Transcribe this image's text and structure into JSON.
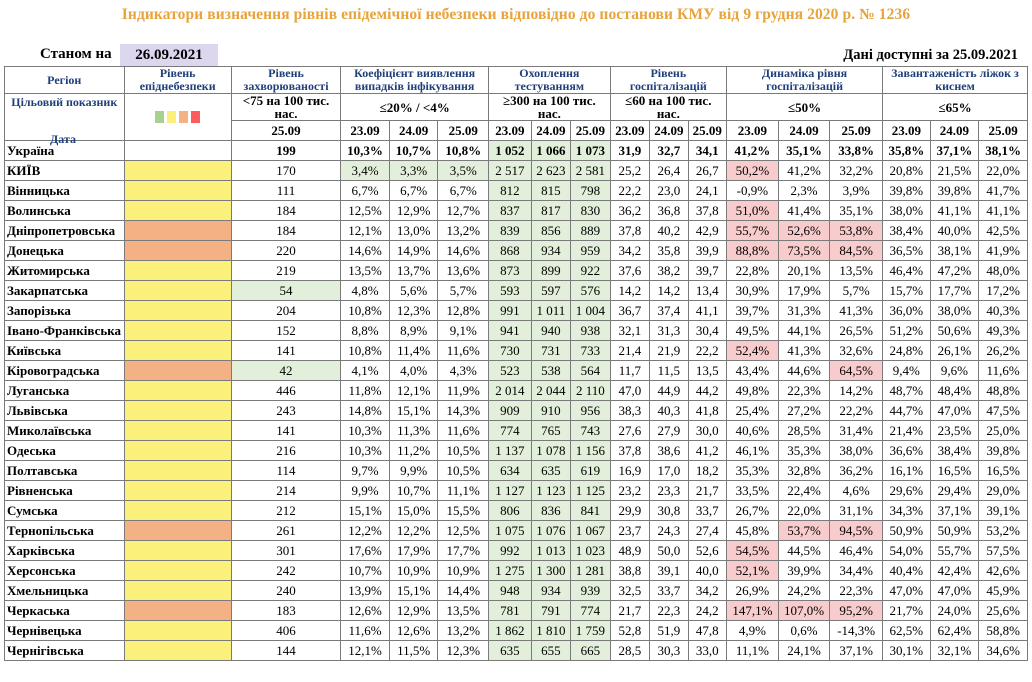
{
  "title": "Індикатори визначення рівнів епідемічної небезпеки відповідно до постанови КМУ від 9 грудня 2020 р. № 1236",
  "as_of_label": "Станом на",
  "as_of_date": "26.09.2021",
  "data_available": "Дані доступні за 25.09.2021",
  "headers": {
    "region": "Регіон",
    "danger_level": "Рівень епіднебезпеки",
    "morbidity": "Рівень захворюваності",
    "detection": "Коефіцієнт виявлення випадків інфікування",
    "testing": "Охоплення тестуванням",
    "hosp_level": "Рівень госпіталізацій",
    "hosp_dynamics": "Динаміка рівня госпіталізацій",
    "bed_load": "Завантаженість ліжок з киснем"
  },
  "target": {
    "label": "Цільовий показник",
    "morbidity": "<75 на 100 тис. нас.",
    "detection": "≤20% / <4%",
    "testing": "≥300 на 100 тис. нас.",
    "hosp_level": "≤60 на 100 тис. нас.",
    "hosp_dynamics": "≤50%",
    "bed_load": "≤65%"
  },
  "legend_colors": [
    "#a9d08e",
    "#fbf07a",
    "#f4b183",
    "#ff5b5b"
  ],
  "date_row": {
    "label": "Дата",
    "morbidity": "25.09",
    "dates": [
      "23.09",
      "24.09",
      "25.09"
    ]
  },
  "level_colors": {
    "yellow": "#fbf07a",
    "green": "#e2efda",
    "orange": "#f4b183"
  },
  "rows": [
    {
      "region": "Україна",
      "level": "none",
      "morbidity": "199",
      "detection": [
        "10,3%",
        "10,7%",
        "10,8%"
      ],
      "testing": [
        "1 052",
        "1 066",
        "1 073"
      ],
      "hosp": [
        "31,9",
        "32,7",
        "34,1"
      ],
      "dyn": [
        "41,2%",
        "35,1%",
        "33,8%"
      ],
      "beds": [
        "35,8%",
        "37,1%",
        "38,1%"
      ],
      "hl": {
        "tst": [
          1,
          1,
          1
        ]
      }
    },
    {
      "region": "КИЇВ",
      "level": "yellow",
      "morbidity": "170",
      "detection": [
        "3,4%",
        "3,3%",
        "3,5%"
      ],
      "testing": [
        "2 517",
        "2 623",
        "2 581"
      ],
      "hosp": [
        "25,2",
        "26,4",
        "26,7"
      ],
      "dyn": [
        "50,2%",
        "41,2%",
        "32,2%"
      ],
      "beds": [
        "20,8%",
        "21,5%",
        "22,0%"
      ],
      "hl": {
        "det": [
          1,
          1,
          1
        ],
        "tst": [
          1,
          1,
          1
        ],
        "dyn": [
          1,
          0,
          0
        ]
      }
    },
    {
      "region": "Вінницька",
      "level": "yellow",
      "morbidity": "111",
      "detection": [
        "6,7%",
        "6,7%",
        "6,7%"
      ],
      "testing": [
        "812",
        "815",
        "798"
      ],
      "hosp": [
        "22,2",
        "23,0",
        "24,1"
      ],
      "dyn": [
        "-0,9%",
        "2,3%",
        "3,9%"
      ],
      "beds": [
        "39,8%",
        "39,8%",
        "41,7%"
      ],
      "hl": {
        "tst": [
          1,
          1,
          1
        ]
      }
    },
    {
      "region": "Волинська",
      "level": "yellow",
      "morbidity": "184",
      "detection": [
        "12,5%",
        "12,9%",
        "12,7%"
      ],
      "testing": [
        "837",
        "817",
        "830"
      ],
      "hosp": [
        "36,2",
        "36,8",
        "37,8"
      ],
      "dyn": [
        "51,0%",
        "41,4%",
        "35,1%"
      ],
      "beds": [
        "38,0%",
        "41,1%",
        "41,1%"
      ],
      "hl": {
        "tst": [
          1,
          1,
          1
        ],
        "dyn": [
          1,
          0,
          0
        ]
      }
    },
    {
      "region": "Дніпропетровська",
      "level": "orange",
      "morbidity": "184",
      "detection": [
        "12,1%",
        "13,0%",
        "13,2%"
      ],
      "testing": [
        "839",
        "856",
        "889"
      ],
      "hosp": [
        "37,8",
        "40,2",
        "42,9"
      ],
      "dyn": [
        "55,7%",
        "52,6%",
        "53,8%"
      ],
      "beds": [
        "38,4%",
        "40,0%",
        "42,5%"
      ],
      "hl": {
        "tst": [
          1,
          1,
          1
        ],
        "dyn": [
          1,
          1,
          1
        ]
      }
    },
    {
      "region": "Донецька",
      "level": "orange",
      "morbidity": "220",
      "detection": [
        "14,6%",
        "14,9%",
        "14,6%"
      ],
      "testing": [
        "868",
        "934",
        "959"
      ],
      "hosp": [
        "34,2",
        "35,8",
        "39,9"
      ],
      "dyn": [
        "88,8%",
        "73,5%",
        "84,5%"
      ],
      "beds": [
        "36,5%",
        "38,1%",
        "41,9%"
      ],
      "hl": {
        "tst": [
          1,
          1,
          1
        ],
        "dyn": [
          1,
          1,
          1
        ]
      }
    },
    {
      "region": "Житомирська",
      "level": "yellow",
      "morbidity": "219",
      "detection": [
        "13,5%",
        "13,7%",
        "13,6%"
      ],
      "testing": [
        "873",
        "899",
        "922"
      ],
      "hosp": [
        "37,6",
        "38,2",
        "39,7"
      ],
      "dyn": [
        "22,8%",
        "20,1%",
        "13,5%"
      ],
      "beds": [
        "46,4%",
        "47,2%",
        "48,0%"
      ],
      "hl": {
        "tst": [
          1,
          1,
          1
        ]
      }
    },
    {
      "region": "Закарпатська",
      "level": "yellow",
      "morbidity": "54",
      "detection": [
        "4,8%",
        "5,6%",
        "5,7%"
      ],
      "testing": [
        "593",
        "597",
        "576"
      ],
      "hosp": [
        "14,2",
        "14,2",
        "13,4"
      ],
      "dyn": [
        "30,9%",
        "17,9%",
        "5,7%"
      ],
      "beds": [
        "15,7%",
        "17,7%",
        "17,2%"
      ],
      "hl": {
        "mor": 1,
        "tst": [
          1,
          1,
          1
        ]
      }
    },
    {
      "region": "Запорізька",
      "level": "yellow",
      "morbidity": "204",
      "detection": [
        "10,8%",
        "12,3%",
        "12,8%"
      ],
      "testing": [
        "991",
        "1 011",
        "1 004"
      ],
      "hosp": [
        "36,7",
        "37,4",
        "41,1"
      ],
      "dyn": [
        "39,7%",
        "31,3%",
        "41,3%"
      ],
      "beds": [
        "36,0%",
        "38,0%",
        "40,3%"
      ],
      "hl": {
        "tst": [
          1,
          1,
          1
        ]
      }
    },
    {
      "region": "Івано-Франківська",
      "level": "yellow",
      "morbidity": "152",
      "detection": [
        "8,8%",
        "8,9%",
        "9,1%"
      ],
      "testing": [
        "941",
        "940",
        "938"
      ],
      "hosp": [
        "32,1",
        "31,3",
        "30,4"
      ],
      "dyn": [
        "49,5%",
        "44,1%",
        "26,5%"
      ],
      "beds": [
        "51,2%",
        "50,6%",
        "49,3%"
      ],
      "hl": {
        "tst": [
          1,
          1,
          1
        ]
      }
    },
    {
      "region": "Київська",
      "level": "yellow",
      "morbidity": "141",
      "detection": [
        "10,8%",
        "11,4%",
        "11,6%"
      ],
      "testing": [
        "730",
        "731",
        "733"
      ],
      "hosp": [
        "21,4",
        "21,9",
        "22,2"
      ],
      "dyn": [
        "52,4%",
        "41,3%",
        "32,6%"
      ],
      "beds": [
        "24,8%",
        "26,1%",
        "26,2%"
      ],
      "hl": {
        "tst": [
          1,
          1,
          1
        ],
        "dyn": [
          1,
          0,
          0
        ]
      }
    },
    {
      "region": "Кіровоградська",
      "level": "orange",
      "morbidity": "42",
      "detection": [
        "4,1%",
        "4,0%",
        "4,3%"
      ],
      "testing": [
        "523",
        "538",
        "564"
      ],
      "hosp": [
        "11,7",
        "11,5",
        "13,5"
      ],
      "dyn": [
        "43,4%",
        "44,6%",
        "64,5%"
      ],
      "beds": [
        "9,4%",
        "9,6%",
        "11,6%"
      ],
      "hl": {
        "mor": 1,
        "tst": [
          1,
          1,
          1
        ],
        "dyn": [
          0,
          0,
          1
        ]
      }
    },
    {
      "region": "Луганська",
      "level": "yellow",
      "morbidity": "446",
      "detection": [
        "11,8%",
        "12,1%",
        "11,9%"
      ],
      "testing": [
        "2 014",
        "2 044",
        "2 110"
      ],
      "hosp": [
        "47,0",
        "44,9",
        "44,2"
      ],
      "dyn": [
        "49,8%",
        "22,3%",
        "14,2%"
      ],
      "beds": [
        "48,7%",
        "48,4%",
        "48,8%"
      ],
      "hl": {
        "tst": [
          1,
          1,
          1
        ]
      }
    },
    {
      "region": "Львівська",
      "level": "yellow",
      "morbidity": "243",
      "detection": [
        "14,8%",
        "15,1%",
        "14,3%"
      ],
      "testing": [
        "909",
        "910",
        "956"
      ],
      "hosp": [
        "38,3",
        "40,3",
        "41,8"
      ],
      "dyn": [
        "25,4%",
        "27,2%",
        "22,2%"
      ],
      "beds": [
        "44,7%",
        "47,0%",
        "47,5%"
      ],
      "hl": {
        "tst": [
          1,
          1,
          1
        ]
      }
    },
    {
      "region": "Миколаївська",
      "level": "yellow",
      "morbidity": "141",
      "detection": [
        "10,3%",
        "11,3%",
        "11,6%"
      ],
      "testing": [
        "774",
        "765",
        "743"
      ],
      "hosp": [
        "27,6",
        "27,9",
        "30,0"
      ],
      "dyn": [
        "40,6%",
        "28,5%",
        "31,4%"
      ],
      "beds": [
        "21,4%",
        "23,5%",
        "25,0%"
      ],
      "hl": {
        "tst": [
          1,
          1,
          1
        ]
      }
    },
    {
      "region": "Одеська",
      "level": "yellow",
      "morbidity": "216",
      "detection": [
        "10,3%",
        "11,2%",
        "10,5%"
      ],
      "testing": [
        "1 137",
        "1 078",
        "1 156"
      ],
      "hosp": [
        "37,8",
        "38,6",
        "41,2"
      ],
      "dyn": [
        "46,1%",
        "35,3%",
        "38,0%"
      ],
      "beds": [
        "36,6%",
        "38,4%",
        "39,8%"
      ],
      "hl": {
        "tst": [
          1,
          1,
          1
        ]
      }
    },
    {
      "region": "Полтавська",
      "level": "yellow",
      "morbidity": "114",
      "detection": [
        "9,7%",
        "9,9%",
        "10,5%"
      ],
      "testing": [
        "634",
        "635",
        "619"
      ],
      "hosp": [
        "16,9",
        "17,0",
        "18,2"
      ],
      "dyn": [
        "35,3%",
        "32,8%",
        "36,2%"
      ],
      "beds": [
        "16,1%",
        "16,5%",
        "16,5%"
      ],
      "hl": {
        "tst": [
          1,
          1,
          1
        ]
      }
    },
    {
      "region": "Рівненська",
      "level": "yellow",
      "morbidity": "214",
      "detection": [
        "9,9%",
        "10,7%",
        "11,1%"
      ],
      "testing": [
        "1 127",
        "1 123",
        "1 125"
      ],
      "hosp": [
        "23,2",
        "23,3",
        "21,7"
      ],
      "dyn": [
        "33,5%",
        "22,4%",
        "4,6%"
      ],
      "beds": [
        "29,6%",
        "29,4%",
        "29,0%"
      ],
      "hl": {
        "tst": [
          1,
          1,
          1
        ]
      }
    },
    {
      "region": "Сумська",
      "level": "yellow",
      "morbidity": "212",
      "detection": [
        "15,1%",
        "15,0%",
        "15,5%"
      ],
      "testing": [
        "806",
        "836",
        "841"
      ],
      "hosp": [
        "29,9",
        "30,8",
        "33,7"
      ],
      "dyn": [
        "26,7%",
        "22,0%",
        "31,1%"
      ],
      "beds": [
        "34,3%",
        "37,1%",
        "39,1%"
      ],
      "hl": {
        "tst": [
          1,
          1,
          1
        ]
      }
    },
    {
      "region": "Тернопільська",
      "level": "orange",
      "morbidity": "261",
      "detection": [
        "12,2%",
        "12,2%",
        "12,5%"
      ],
      "testing": [
        "1 075",
        "1 076",
        "1 067"
      ],
      "hosp": [
        "23,7",
        "24,3",
        "27,4"
      ],
      "dyn": [
        "45,8%",
        "53,7%",
        "94,5%"
      ],
      "beds": [
        "50,9%",
        "50,9%",
        "53,2%"
      ],
      "hl": {
        "tst": [
          1,
          1,
          1
        ],
        "dyn": [
          0,
          1,
          1
        ]
      }
    },
    {
      "region": "Харківська",
      "level": "yellow",
      "morbidity": "301",
      "detection": [
        "17,6%",
        "17,9%",
        "17,7%"
      ],
      "testing": [
        "992",
        "1 013",
        "1 023"
      ],
      "hosp": [
        "48,9",
        "50,0",
        "52,6"
      ],
      "dyn": [
        "54,5%",
        "44,5%",
        "46,4%"
      ],
      "beds": [
        "54,0%",
        "55,7%",
        "57,5%"
      ],
      "hl": {
        "tst": [
          1,
          1,
          1
        ],
        "dyn": [
          1,
          0,
          0
        ]
      }
    },
    {
      "region": "Херсонська",
      "level": "yellow",
      "morbidity": "242",
      "detection": [
        "10,7%",
        "10,9%",
        "10,9%"
      ],
      "testing": [
        "1 275",
        "1 300",
        "1 281"
      ],
      "hosp": [
        "38,8",
        "39,1",
        "40,0"
      ],
      "dyn": [
        "52,1%",
        "39,9%",
        "34,4%"
      ],
      "beds": [
        "40,4%",
        "42,4%",
        "42,6%"
      ],
      "hl": {
        "tst": [
          1,
          1,
          1
        ],
        "dyn": [
          1,
          0,
          0
        ]
      }
    },
    {
      "region": "Хмельницька",
      "level": "yellow",
      "morbidity": "240",
      "detection": [
        "13,9%",
        "15,1%",
        "14,4%"
      ],
      "testing": [
        "948",
        "934",
        "939"
      ],
      "hosp": [
        "32,5",
        "33,7",
        "34,2"
      ],
      "dyn": [
        "26,9%",
        "24,2%",
        "22,3%"
      ],
      "beds": [
        "47,0%",
        "47,0%",
        "45,9%"
      ],
      "hl": {
        "tst": [
          1,
          1,
          1
        ]
      }
    },
    {
      "region": "Черкаська",
      "level": "orange",
      "morbidity": "183",
      "detection": [
        "12,6%",
        "12,9%",
        "13,5%"
      ],
      "testing": [
        "781",
        "791",
        "774"
      ],
      "hosp": [
        "21,7",
        "22,3",
        "24,2"
      ],
      "dyn": [
        "147,1%",
        "107,0%",
        "95,2%"
      ],
      "beds": [
        "21,7%",
        "24,0%",
        "25,6%"
      ],
      "hl": {
        "tst": [
          1,
          1,
          1
        ],
        "dyn": [
          1,
          1,
          1
        ]
      }
    },
    {
      "region": "Чернівецька",
      "level": "yellow",
      "morbidity": "406",
      "detection": [
        "11,6%",
        "12,6%",
        "13,2%"
      ],
      "testing": [
        "1 862",
        "1 810",
        "1 759"
      ],
      "hosp": [
        "52,8",
        "51,9",
        "47,8"
      ],
      "dyn": [
        "4,9%",
        "0,6%",
        "-14,3%"
      ],
      "beds": [
        "62,5%",
        "62,4%",
        "58,8%"
      ],
      "hl": {
        "tst": [
          1,
          1,
          1
        ]
      }
    },
    {
      "region": "Чернігівська",
      "level": "yellow",
      "morbidity": "144",
      "detection": [
        "12,1%",
        "11,5%",
        "12,3%"
      ],
      "testing": [
        "635",
        "655",
        "665"
      ],
      "hosp": [
        "28,5",
        "30,3",
        "33,0"
      ],
      "dyn": [
        "11,1%",
        "24,1%",
        "37,1%"
      ],
      "beds": [
        "30,1%",
        "32,1%",
        "34,6%"
      ],
      "hl": {
        "tst": [
          1,
          1,
          1
        ]
      }
    }
  ]
}
